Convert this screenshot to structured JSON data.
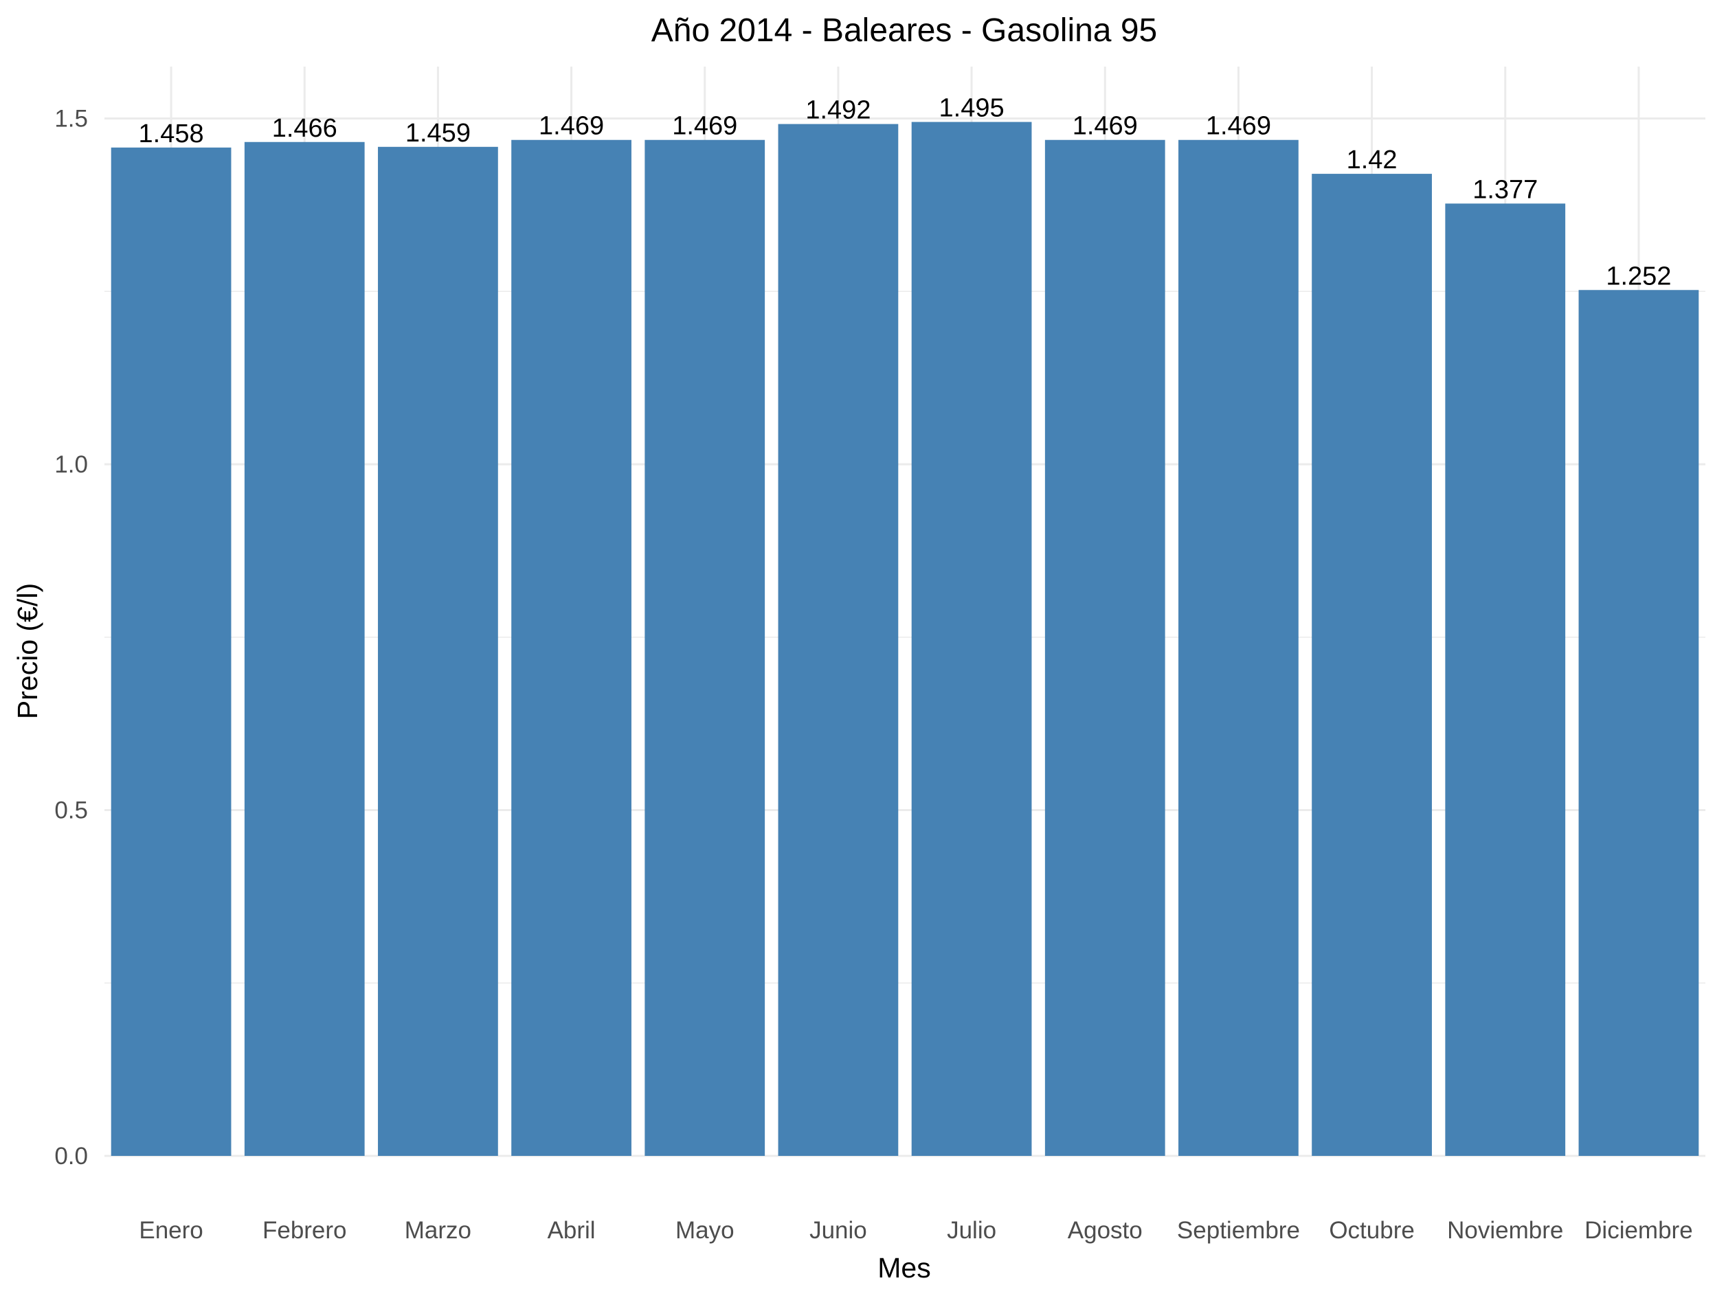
{
  "chart_data": {
    "type": "bar",
    "title": "Año 2014 - Baleares - Gasolina 95",
    "xlabel": "Mes",
    "ylabel": "Precio (€/l)",
    "categories": [
      "Enero",
      "Febrero",
      "Marzo",
      "Abril",
      "Mayo",
      "Junio",
      "Julio",
      "Agosto",
      "Septiembre",
      "Octubre",
      "Noviembre",
      "Diciembre"
    ],
    "values": [
      1.458,
      1.466,
      1.459,
      1.469,
      1.469,
      1.492,
      1.495,
      1.469,
      1.469,
      1.42,
      1.377,
      1.252
    ],
    "data_labels": [
      "1.458",
      "1.466",
      "1.459",
      "1.469",
      "1.469",
      "1.492",
      "1.495",
      "1.469",
      "1.469",
      "1.42",
      "1.377",
      "1.252"
    ],
    "ylim": [
      0,
      1.575
    ],
    "yticks": [
      0,
      0.5,
      1.0,
      1.5
    ],
    "ytick_labels": [
      "0.0",
      "0.5",
      "1.0",
      "1.5"
    ],
    "grid": true,
    "legend": "none",
    "bar_color": "#4682b4",
    "grid_color": "#ebebeb"
  }
}
